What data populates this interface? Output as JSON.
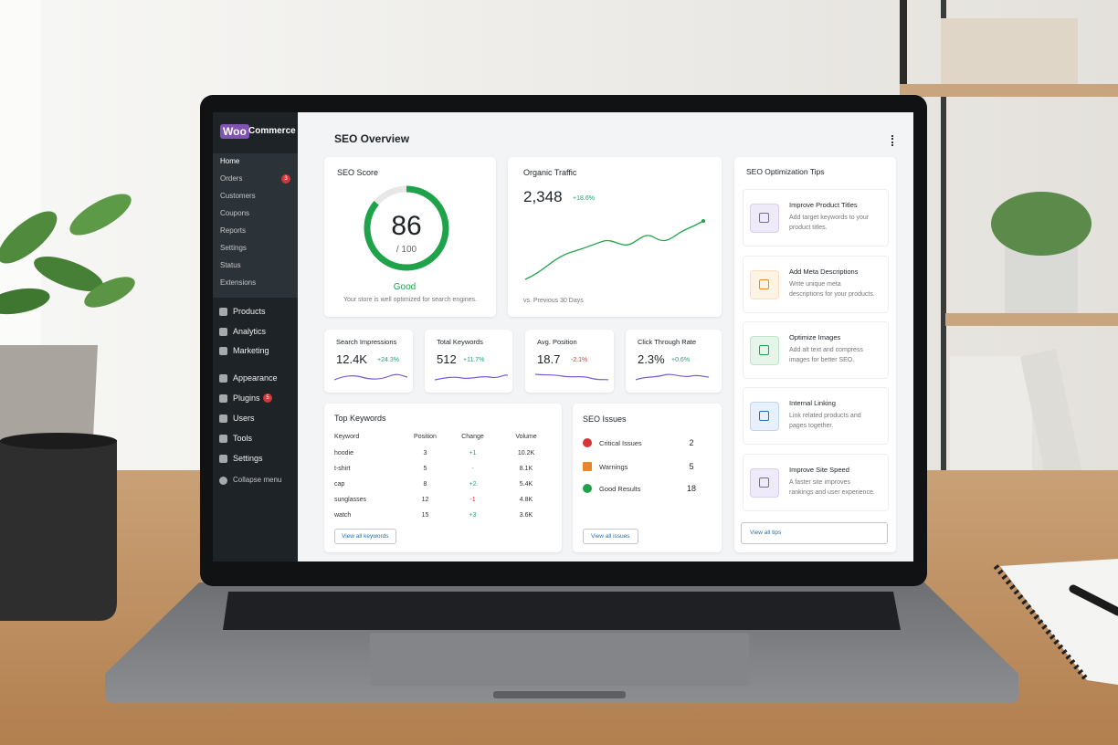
{
  "sidebar": {
    "logo": {
      "brand": "Woo",
      "name": "Commerce"
    },
    "submenu": [
      "Home",
      "Orders",
      "Customers",
      "Coupons",
      "Reports",
      "Settings",
      "Status",
      "Extensions"
    ],
    "orders_badge": 3,
    "menu": [
      "Products",
      "Analytics",
      "Marketing",
      "Appearance",
      "Plugins",
      "Users",
      "Tools",
      "Settings"
    ],
    "plugins_badge": 5,
    "collapse": "Collapse menu"
  },
  "header": {
    "title": "SEO Overview"
  },
  "seo_score": {
    "title": "SEO Score",
    "score": 86,
    "max": {
      "value": 100,
      "label": "/ 100"
    },
    "rating": "Good",
    "note": "Your store is well optimized for search engines."
  },
  "organic_traffic": {
    "title": "Organic Traffic",
    "value": "2,348",
    "change": "+18.6%",
    "footnote": "vs. Previous 30 Days"
  },
  "metrics": [
    {
      "label": "Search Impressions",
      "value": "12.4K",
      "change": "+24.3%"
    },
    {
      "label": "Total Keywords",
      "value": "512",
      "change": "+11.7%"
    },
    {
      "label": "Avg. Position",
      "value": "18.7",
      "change": "-2.1%"
    },
    {
      "label": "Click Through Rate",
      "value": "2.3%",
      "change": "+0.6%"
    }
  ],
  "top_keywords": {
    "title": "Top Keywords",
    "columns": [
      "Keyword",
      "Position",
      "Change",
      "Volume"
    ],
    "rows": [
      [
        "hoodie",
        3,
        "+1",
        "10.2K"
      ],
      [
        "t-shirt",
        5,
        "-",
        "8.1K"
      ],
      [
        "cap",
        8,
        "+2",
        "5.4K"
      ],
      [
        "sunglasses",
        12,
        "-1",
        "4.8K"
      ],
      [
        "watch",
        15,
        "+3",
        "3.6K"
      ]
    ],
    "button": "View all keywords"
  },
  "seo_issues": {
    "title": "SEO Issues",
    "items": [
      {
        "label": "Critical Issues",
        "count": 2
      },
      {
        "label": "Warnings",
        "count": 5
      },
      {
        "label": "Good Results",
        "count": 18
      }
    ],
    "button": "View all issues"
  },
  "tips": {
    "title": "SEO Optimization Tips",
    "items": [
      {
        "title": "Improve Product Titles",
        "text": "Add target keywords to your product titles."
      },
      {
        "title": "Add Meta Descriptions",
        "text": "Write unique meta descriptions for your products."
      },
      {
        "title": "Optimize Images",
        "text": "Add alt text and compress images for better SEO."
      },
      {
        "title": "Internal Linking",
        "text": "Link related products and pages together."
      },
      {
        "title": "Improve Site Speed",
        "text": "A faster site improves rankings and user experience."
      }
    ],
    "button": "View all tips"
  }
}
